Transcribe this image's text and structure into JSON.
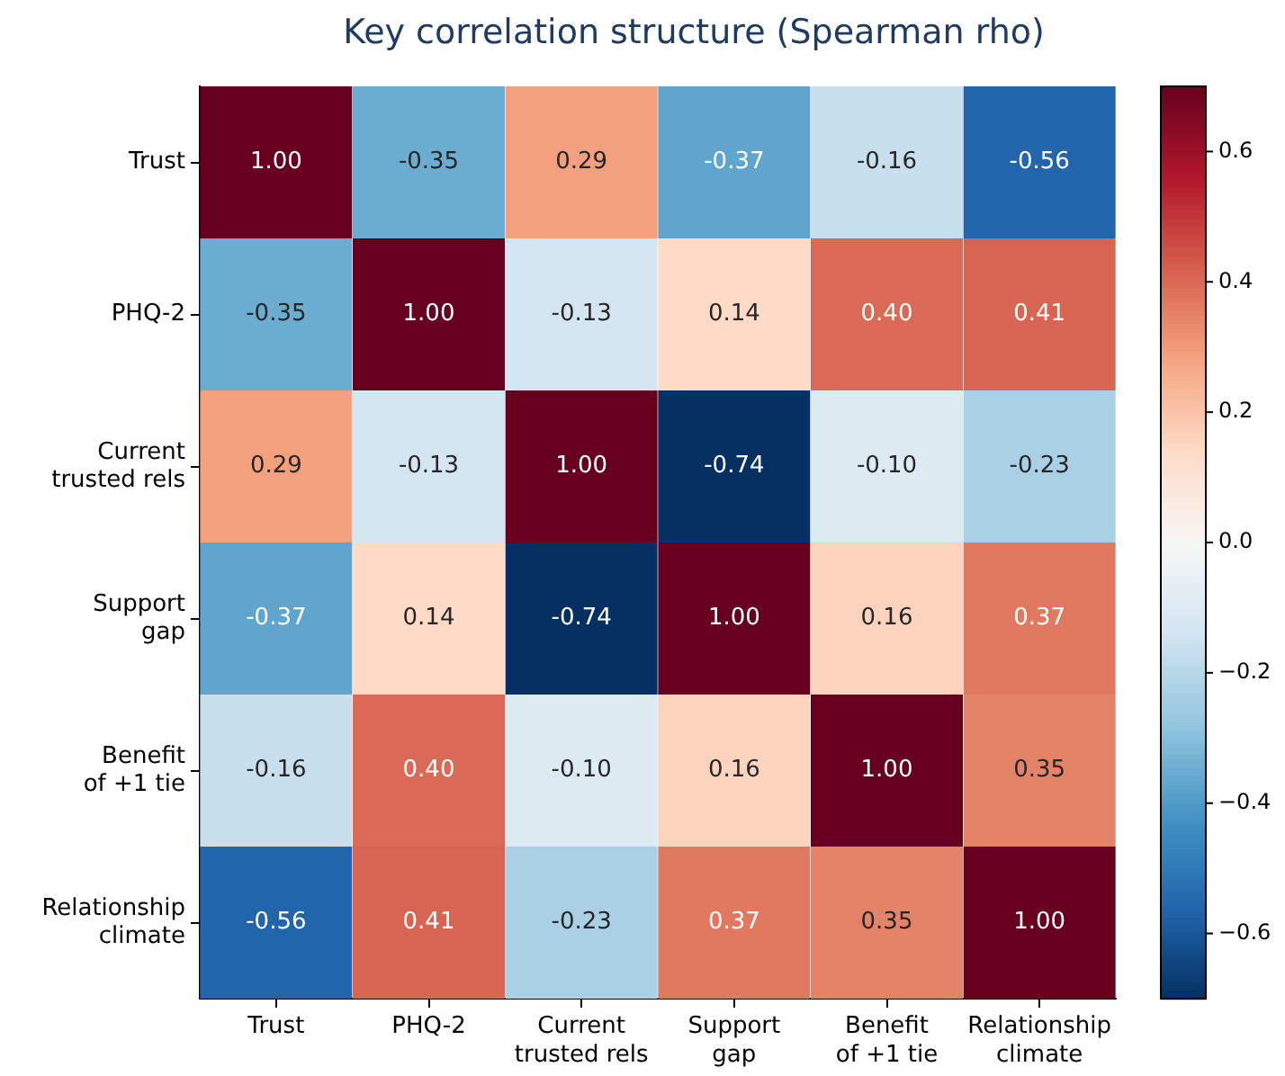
{
  "chart_data": {
    "type": "heatmap",
    "title": "Key correlation structure (Spearman rho)",
    "categories": [
      "Trust",
      "PHQ-2",
      "Current\ntrusted rels",
      "Support\ngap",
      "Benefit\nof +1 tie",
      "Relationship\nclimate"
    ],
    "y_categories": [
      "Trust",
      "PHQ-2",
      "Current\ntrusted rels",
      "Support\ngap",
      "Benefit\nof +1 tie",
      "Relationship\nclimate"
    ],
    "cells": [
      [
        1.0,
        -0.35,
        0.29,
        -0.37,
        -0.16,
        -0.56
      ],
      [
        -0.35,
        1.0,
        -0.13,
        0.14,
        0.4,
        0.41
      ],
      [
        0.29,
        -0.13,
        1.0,
        -0.74,
        -0.1,
        -0.23
      ],
      [
        -0.37,
        0.14,
        -0.74,
        1.0,
        0.16,
        0.37
      ],
      [
        -0.16,
        0.4,
        -0.1,
        0.16,
        1.0,
        0.35
      ],
      [
        -0.56,
        0.41,
        -0.23,
        0.37,
        0.35,
        1.0
      ]
    ],
    "cell_labels": [
      [
        "1.00",
        "-0.35",
        "0.29",
        "-0.37",
        "-0.16",
        "-0.56"
      ],
      [
        "-0.35",
        "1.00",
        "-0.13",
        "0.14",
        "0.40",
        "0.41"
      ],
      [
        "0.29",
        "-0.13",
        "1.00",
        "-0.74",
        "-0.10",
        "-0.23"
      ],
      [
        "-0.37",
        "0.14",
        "-0.74",
        "1.00",
        "0.16",
        "0.37"
      ],
      [
        "-0.16",
        "0.40",
        "-0.10",
        "0.16",
        "1.00",
        "0.35"
      ],
      [
        "-0.56",
        "0.41",
        "-0.23",
        "0.37",
        "0.35",
        "1.00"
      ]
    ],
    "clim": [
      -0.7,
      0.7
    ],
    "cticks": [
      {
        "value": -0.6,
        "label": "−0.6"
      },
      {
        "value": -0.4,
        "label": "−0.4"
      },
      {
        "value": -0.2,
        "label": "−0.2"
      },
      {
        "value": 0,
        "label": "0.0"
      },
      0.2,
      0.4,
      0.6
    ]
  }
}
